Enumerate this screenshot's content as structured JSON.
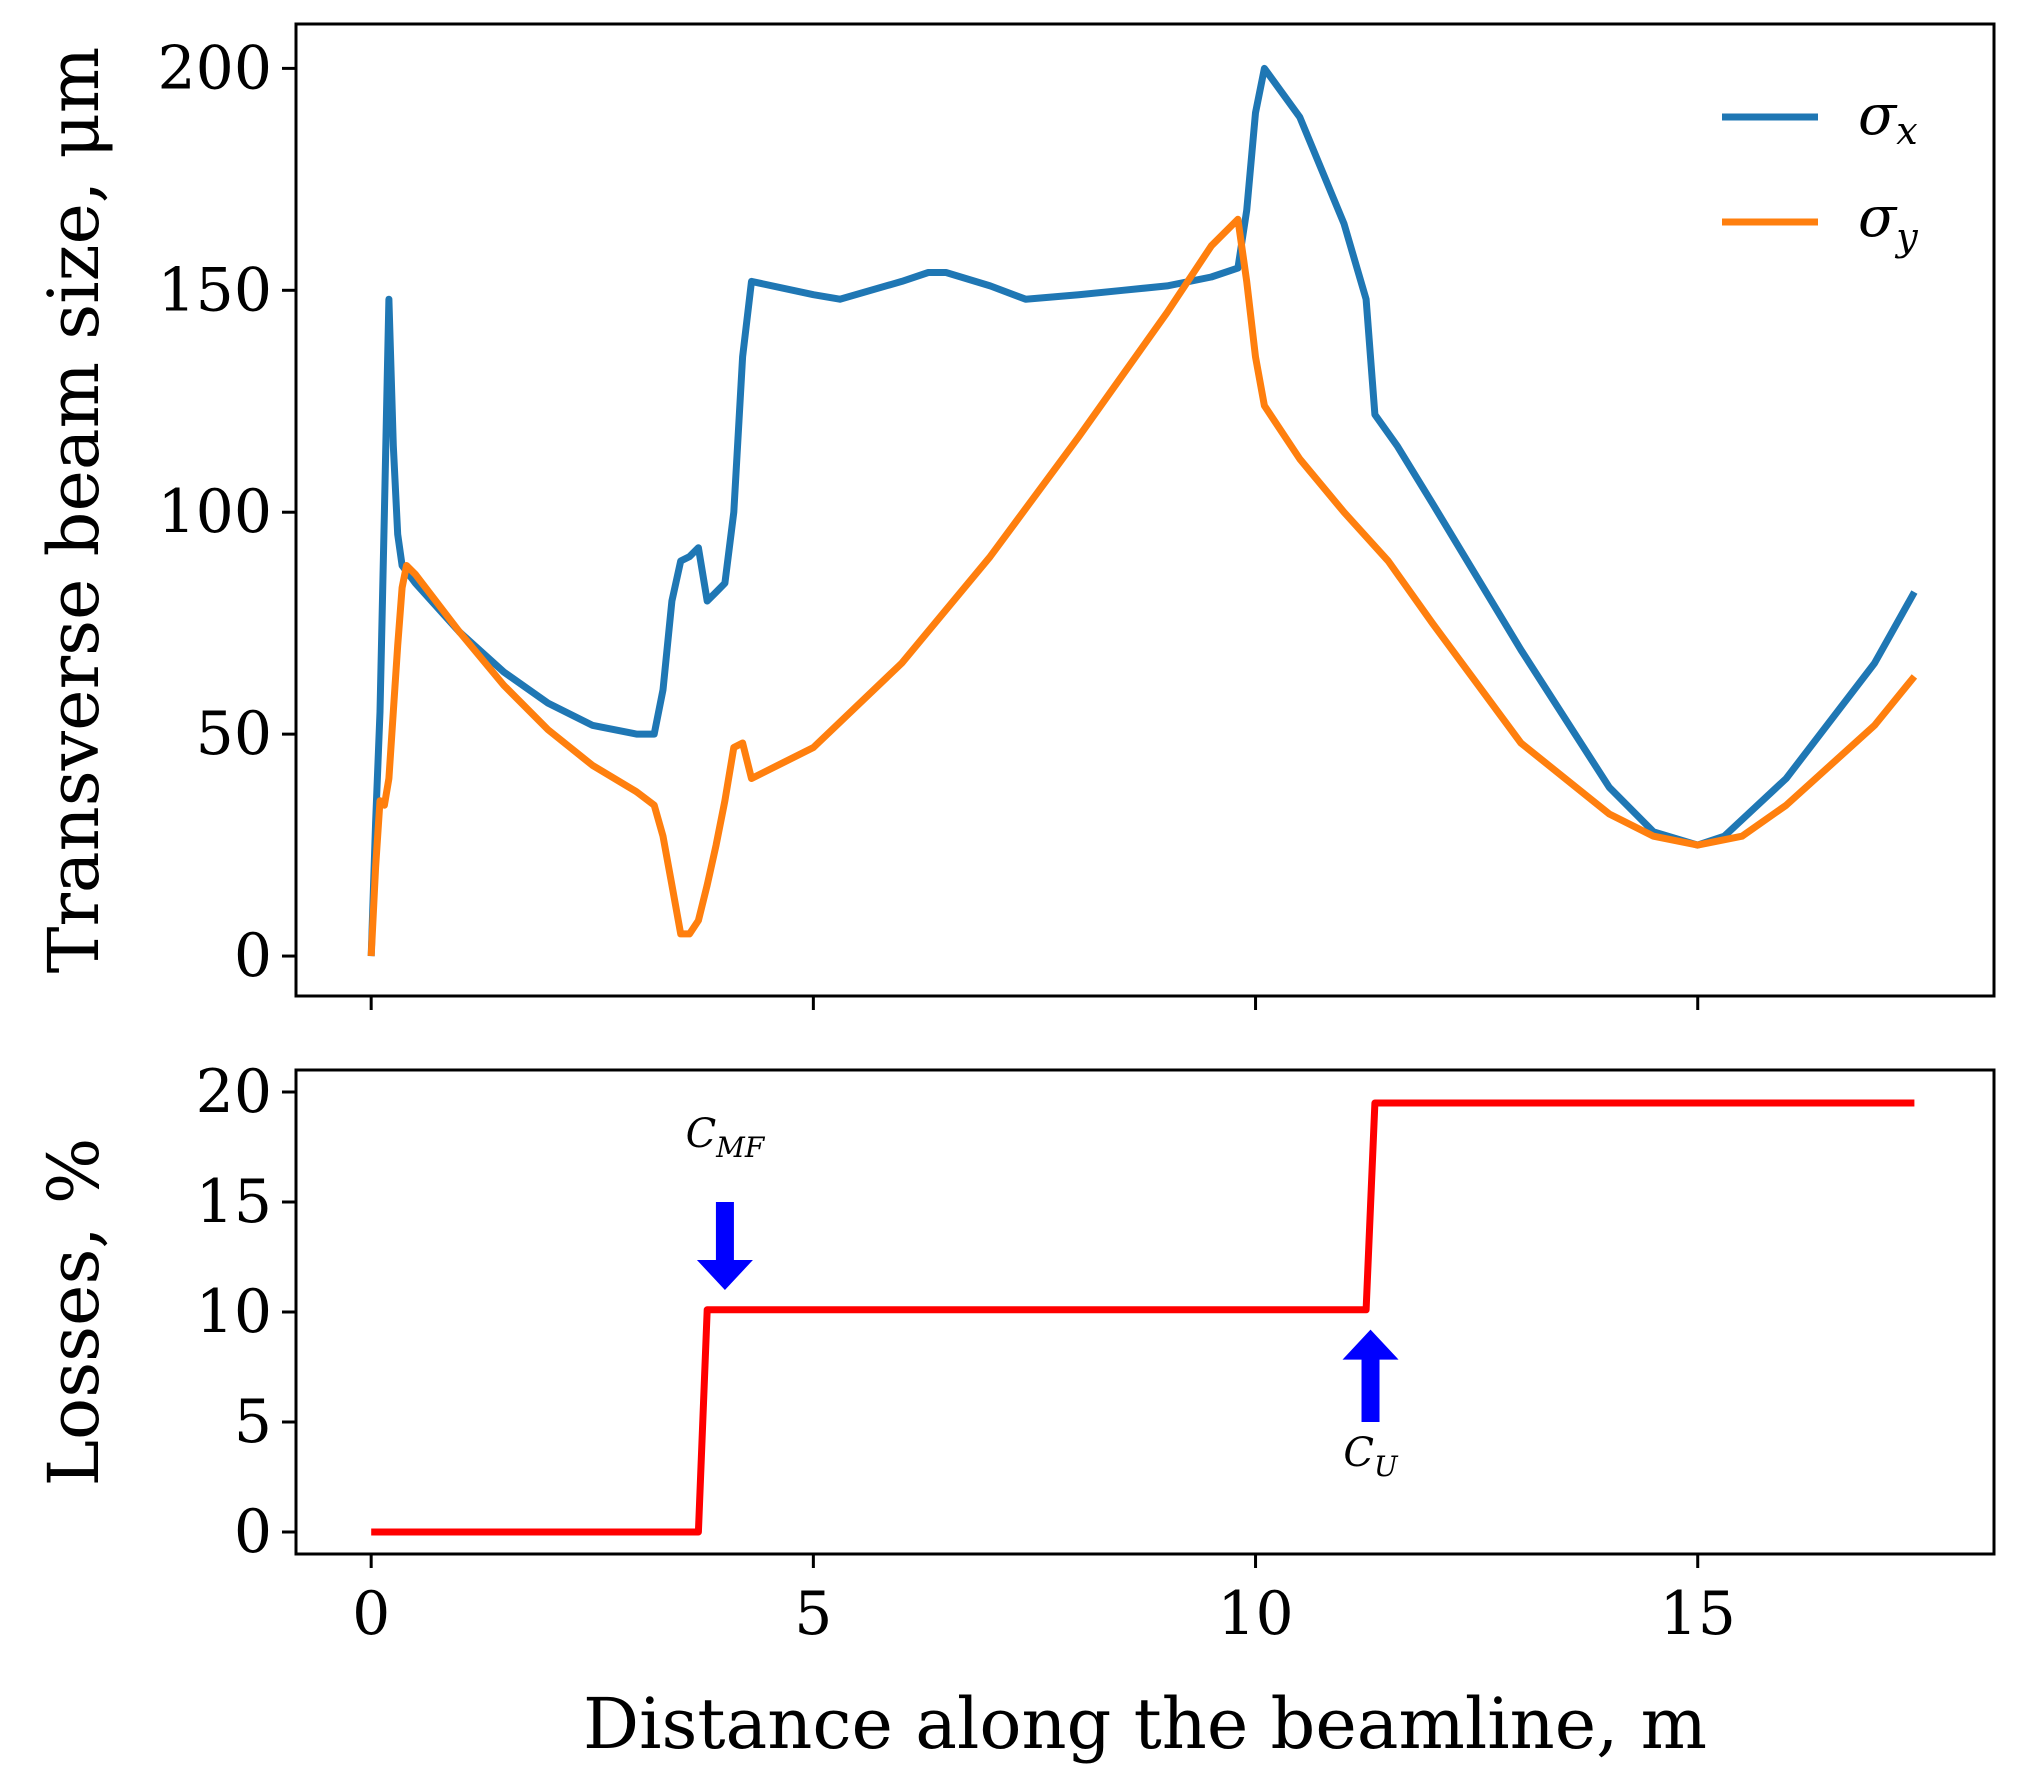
{
  "chart_data": [
    {
      "type": "line",
      "panel": "top",
      "ylabel": "Transverse beam size, μm",
      "xlabel": "",
      "xlim": [
        -0.85,
        18.35
      ],
      "ylim": [
        -9,
        210
      ],
      "xticks": [
        0,
        5,
        10,
        15
      ],
      "yticks": [
        0,
        50,
        100,
        150,
        200
      ],
      "ytick_labels": [
        "0",
        "50",
        "100",
        "150",
        "200"
      ],
      "legend_position": "top-right",
      "series": [
        {
          "name": "σx",
          "legend_symbol": "σ",
          "legend_sub": "x",
          "color": "#1f77b4",
          "x": [
            0,
            0.05,
            0.1,
            0.15,
            0.2,
            0.25,
            0.3,
            0.35,
            0.5,
            1.0,
            1.5,
            2.0,
            2.5,
            3.0,
            3.2,
            3.3,
            3.4,
            3.5,
            3.6,
            3.7,
            3.8,
            3.9,
            4.0,
            4.1,
            4.2,
            4.3,
            5.0,
            5.3,
            6.0,
            6.3,
            6.5,
            7.0,
            7.4,
            8.0,
            8.5,
            9.0,
            9.5,
            9.8,
            9.9,
            10.0,
            10.1,
            10.5,
            11.0,
            11.25,
            11.35,
            11.6,
            12.0,
            13.0,
            14.0,
            14.5,
            15.0,
            15.3,
            16.0,
            17.0,
            17.45
          ],
          "y": [
            0,
            30,
            55,
            100,
            148,
            115,
            95,
            88,
            84,
            73,
            64,
            57,
            52,
            50,
            50,
            60,
            80,
            89,
            90,
            92,
            80,
            82,
            84,
            100,
            135,
            152,
            149,
            148,
            152,
            154,
            154,
            151,
            148,
            149,
            150,
            151,
            153,
            155,
            168,
            190,
            200,
            189,
            165,
            148,
            122,
            115,
            102,
            69,
            38,
            28,
            25,
            27,
            40,
            66,
            82
          ]
        },
        {
          "name": "σy",
          "legend_symbol": "σ",
          "legend_sub": "y",
          "color": "#ff7f0e",
          "x": [
            0,
            0.05,
            0.1,
            0.15,
            0.2,
            0.25,
            0.3,
            0.35,
            0.4,
            0.5,
            1.0,
            1.5,
            2.0,
            2.5,
            3.0,
            3.2,
            3.3,
            3.4,
            3.5,
            3.6,
            3.7,
            3.8,
            3.9,
            4.0,
            4.1,
            4.2,
            4.3,
            5.0,
            6.0,
            7.0,
            8.0,
            9.0,
            9.5,
            9.8,
            9.9,
            10.0,
            10.1,
            10.5,
            11.0,
            11.5,
            12.0,
            13.0,
            14.0,
            14.5,
            15.0,
            15.5,
            16.0,
            17.0,
            17.45
          ],
          "y": [
            0,
            20,
            35,
            34,
            40,
            55,
            70,
            83,
            88,
            86,
            73,
            61,
            51,
            43,
            37,
            34,
            27,
            16,
            5,
            5,
            8,
            16,
            25,
            35,
            47,
            48,
            40,
            47,
            66,
            90,
            117,
            145,
            160,
            166,
            152,
            135,
            124,
            112,
            100,
            89,
            75,
            48,
            32,
            27,
            25,
            27,
            34,
            52,
            63
          ]
        }
      ]
    },
    {
      "type": "line",
      "panel": "bottom",
      "ylabel": "Losses, %",
      "xlabel": "Distance along the beamline, m",
      "xlim": [
        -0.85,
        18.35
      ],
      "ylim": [
        -1,
        21
      ],
      "xticks": [
        0,
        5,
        10,
        15
      ],
      "xtick_labels": [
        "0",
        "5",
        "10",
        "15"
      ],
      "yticks": [
        0,
        5,
        10,
        15,
        20
      ],
      "ytick_labels": [
        "0",
        "5",
        "10",
        "15",
        "20"
      ],
      "series": [
        {
          "name": "Losses",
          "color": "#ff0000",
          "x": [
            0,
            3.7,
            3.8,
            11.25,
            11.35,
            17.45
          ],
          "y": [
            0,
            0,
            10.1,
            10.1,
            19.5,
            19.5
          ]
        }
      ],
      "annotations": [
        {
          "label": "C",
          "sub": "MF",
          "x": 4.0,
          "label_y": 17.5,
          "arrow": "down",
          "arrow_from": 15,
          "arrow_to": 11,
          "color": "#0000ff"
        },
        {
          "label": "C",
          "sub": "U",
          "x": 11.3,
          "label_y": 3.0,
          "arrow": "up",
          "arrow_from": 5,
          "arrow_to": 9.2,
          "color": "#0000ff"
        }
      ]
    }
  ]
}
